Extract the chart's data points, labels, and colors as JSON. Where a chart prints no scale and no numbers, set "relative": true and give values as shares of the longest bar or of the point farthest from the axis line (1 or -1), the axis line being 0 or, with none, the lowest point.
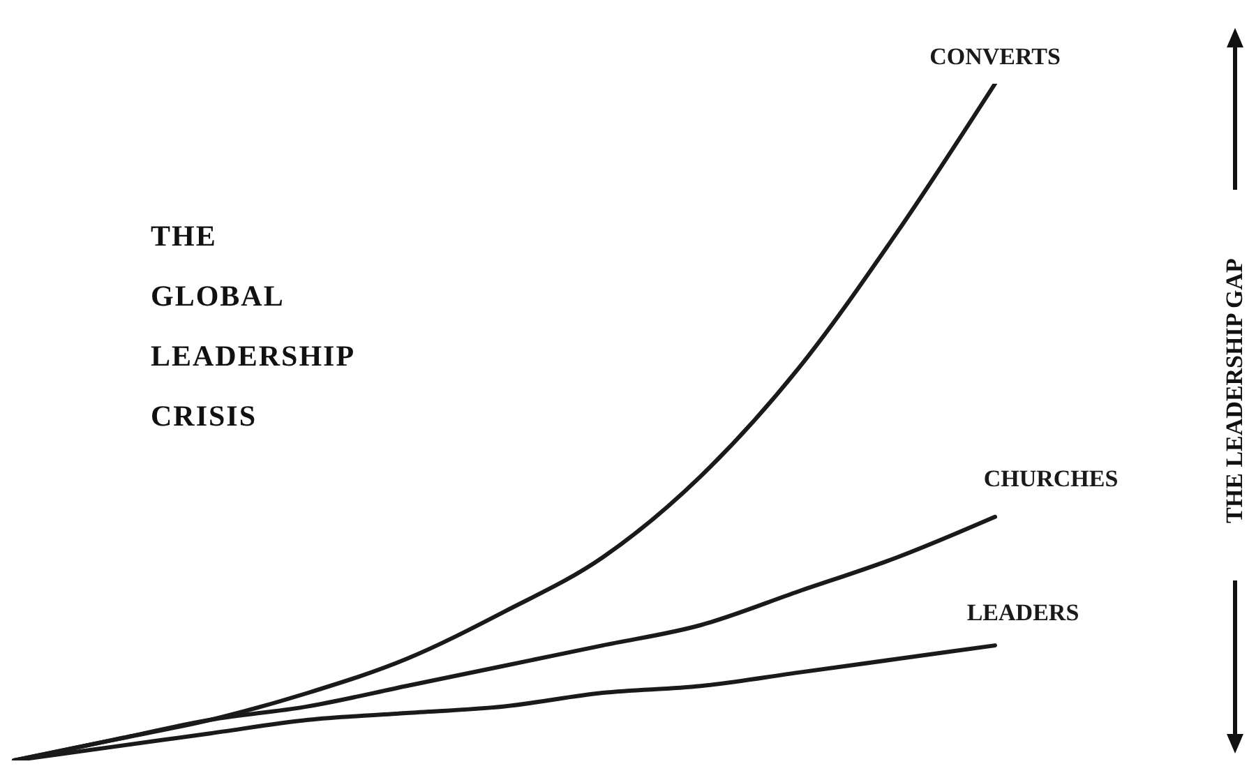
{
  "chart_data": {
    "type": "line",
    "title": "THE GLOBAL LEADERSHIP CRISIS",
    "relative": true,
    "grid": false,
    "legend": false,
    "marker": "none",
    "line_style": "solid",
    "categories": [
      null,
      null,
      null,
      null,
      null,
      null,
      null,
      null,
      null,
      null,
      null
    ],
    "series": [
      {
        "name": "CONVERTS",
        "color": "#1a1a1a",
        "values": [
          0,
          0.03,
          0.06,
          0.1,
          0.15,
          0.22,
          0.3,
          0.42,
          0.58,
          0.78,
          1
        ]
      },
      {
        "name": "CHURCHES",
        "color": "#1a1a1a",
        "values": [
          0,
          0.03,
          0.06,
          0.08,
          0.11,
          0.14,
          0.17,
          0.2,
          0.25,
          0.3,
          0.36
        ]
      },
      {
        "name": "LEADERS",
        "color": "#1a1a1a",
        "values": [
          0,
          0.02,
          0.04,
          0.06,
          0.07,
          0.08,
          0.1,
          0.11,
          0.13,
          0.15,
          0.17
        ]
      }
    ],
    "annotations": [
      "THE LEADERSHIP GAP"
    ]
  }
}
